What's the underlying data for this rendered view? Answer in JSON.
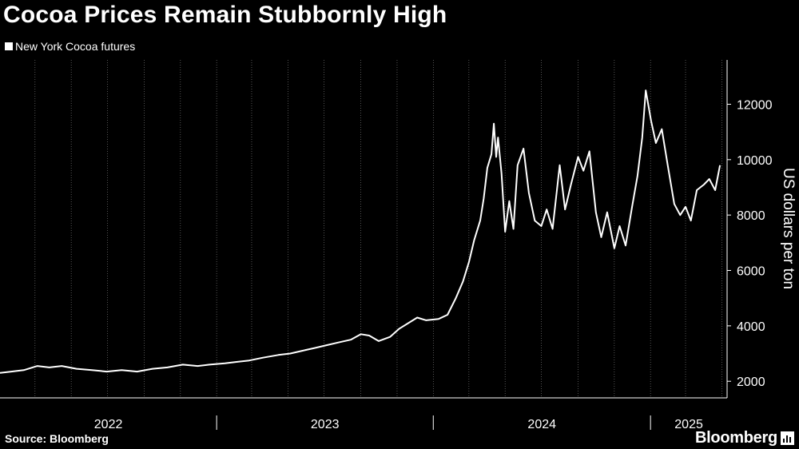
{
  "header": {
    "title": "Cocoa Prices Remain Stubbornly High",
    "legend_label": "New York Cocoa futures"
  },
  "footer": {
    "source": "Source: Bloomberg",
    "brand": "Bloomberg"
  },
  "colors": {
    "background": "#000000",
    "line": "#ffffff",
    "grid": "#ffffff",
    "text": "#ffffff"
  },
  "chart_data": {
    "type": "line",
    "title": "Cocoa Prices Remain Stubbornly High",
    "ylabel": "US dollars per ton",
    "xlabel": "",
    "ylim": [
      1400,
      13600
    ],
    "xlim": [
      "2022-01-01",
      "2025-05-10"
    ],
    "y_ticks": [
      2000,
      4000,
      6000,
      8000,
      10000,
      12000
    ],
    "x_tick_labels": [
      "2022",
      "2023",
      "2024",
      "2025"
    ],
    "x_ticks": [
      "2022-01-01",
      "2023-01-01",
      "2024-01-01",
      "2025-01-01"
    ],
    "grid": "vertical dotted",
    "legend": "top-left",
    "series": [
      {
        "name": "New York Cocoa futures",
        "x": [
          "2022-01-01",
          "2022-01-20",
          "2022-02-10",
          "2022-03-05",
          "2022-03-25",
          "2022-04-15",
          "2022-05-10",
          "2022-06-05",
          "2022-06-30",
          "2022-07-25",
          "2022-08-20",
          "2022-09-15",
          "2022-10-10",
          "2022-11-05",
          "2022-11-30",
          "2022-12-20",
          "2023-01-15",
          "2023-02-05",
          "2023-02-25",
          "2023-03-20",
          "2023-04-15",
          "2023-05-05",
          "2023-05-25",
          "2023-06-15",
          "2023-07-05",
          "2023-07-25",
          "2023-08-15",
          "2023-09-01",
          "2023-09-15",
          "2023-10-01",
          "2023-10-20",
          "2023-11-05",
          "2023-11-20",
          "2023-12-05",
          "2023-12-20",
          "2024-01-10",
          "2024-01-25",
          "2024-02-08",
          "2024-02-20",
          "2024-03-01",
          "2024-03-10",
          "2024-03-20",
          "2024-03-26",
          "2024-04-01",
          "2024-04-08",
          "2024-04-12",
          "2024-04-16",
          "2024-04-19",
          "2024-04-25",
          "2024-05-01",
          "2024-05-08",
          "2024-05-15",
          "2024-05-22",
          "2024-06-01",
          "2024-06-10",
          "2024-06-20",
          "2024-07-01",
          "2024-07-10",
          "2024-07-20",
          "2024-08-01",
          "2024-08-10",
          "2024-08-20",
          "2024-09-01",
          "2024-09-10",
          "2024-09-20",
          "2024-10-01",
          "2024-10-10",
          "2024-10-20",
          "2024-11-01",
          "2024-11-10",
          "2024-11-20",
          "2024-12-01",
          "2024-12-10",
          "2024-12-18",
          "2024-12-24",
          "2025-01-02",
          "2025-01-10",
          "2025-01-20",
          "2025-01-30",
          "2025-02-10",
          "2025-02-20",
          "2025-03-01",
          "2025-03-10",
          "2025-03-20",
          "2025-04-01",
          "2025-04-10",
          "2025-04-20",
          "2025-04-28"
        ],
        "values": [
          2300,
          2350,
          2400,
          2550,
          2500,
          2550,
          2450,
          2400,
          2350,
          2400,
          2350,
          2450,
          2500,
          2600,
          2550,
          2600,
          2650,
          2700,
          2750,
          2850,
          2950,
          3000,
          3100,
          3200,
          3300,
          3400,
          3500,
          3700,
          3650,
          3450,
          3600,
          3900,
          4100,
          4300,
          4200,
          4250,
          4400,
          5000,
          5600,
          6300,
          7100,
          7800,
          8600,
          9700,
          10200,
          11300,
          10100,
          10800,
          9500,
          7400,
          8500,
          7500,
          9800,
          10400,
          8800,
          7800,
          7600,
          8200,
          7500,
          9800,
          8200,
          9100,
          10100,
          9600,
          10300,
          8100,
          7200,
          8100,
          6800,
          7600,
          6900,
          8300,
          9400,
          10800,
          12500,
          11400,
          10600,
          11100,
          9800,
          8400,
          8000,
          8300,
          7800,
          8900,
          9100,
          9300,
          8900,
          9800
        ]
      }
    ]
  }
}
